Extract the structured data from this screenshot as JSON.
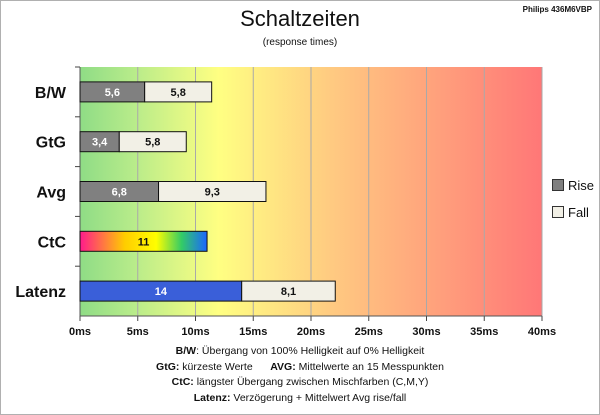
{
  "chart_data": {
    "type": "bar",
    "orientation": "horizontal",
    "stacked": true,
    "title": "Schaltzeiten",
    "subtitle": "(response times)",
    "model": "Philips 436M6VBP",
    "categories": [
      "B/W",
      "GtG",
      "Avg",
      "CtC",
      "Latenz"
    ],
    "series": [
      {
        "name": "Rise",
        "values": [
          5.6,
          3.4,
          6.8,
          11,
          14
        ],
        "labels": [
          "5,6",
          "3,4",
          "6,8",
          "11",
          "14"
        ],
        "color": "#808080"
      },
      {
        "name": "Fall",
        "values": [
          5.8,
          5.8,
          9.3,
          0,
          8.1
        ],
        "labels": [
          "5,8",
          "5,8",
          "9,3",
          "",
          "8,1"
        ],
        "color": "#f2f0e6"
      }
    ],
    "special_colors": {
      "CtC": "rainbow-gradient",
      "Latenz": "#3a5fd9"
    },
    "xticks": [
      "0ms",
      "5ms",
      "10ms",
      "15ms",
      "20ms",
      "25ms",
      "30ms",
      "35ms",
      "40ms"
    ],
    "xlim": [
      0,
      40
    ],
    "background": "gradient green to yellow to red",
    "grid": true,
    "legend_position": "right"
  },
  "notes": {
    "bw_key": "B/W",
    "bw_text": ":  Übergang von 100% Helligkeit auf 0% Helligkeit",
    "gtg_key": "GtG:",
    "gtg_text": " kürzeste  Werte",
    "avg_key": "AVG:",
    "avg_text": " Mittelwerte  an 15 Messpunkten",
    "ctc_key": "CtC:",
    "ctc_text": " längster Übergang  zwischen Mischfarben  (C,M,Y)",
    "latenz_key": "Latenz:",
    "latenz_text": " Verzögerung  + Mittelwert  Avg rise/fall"
  }
}
